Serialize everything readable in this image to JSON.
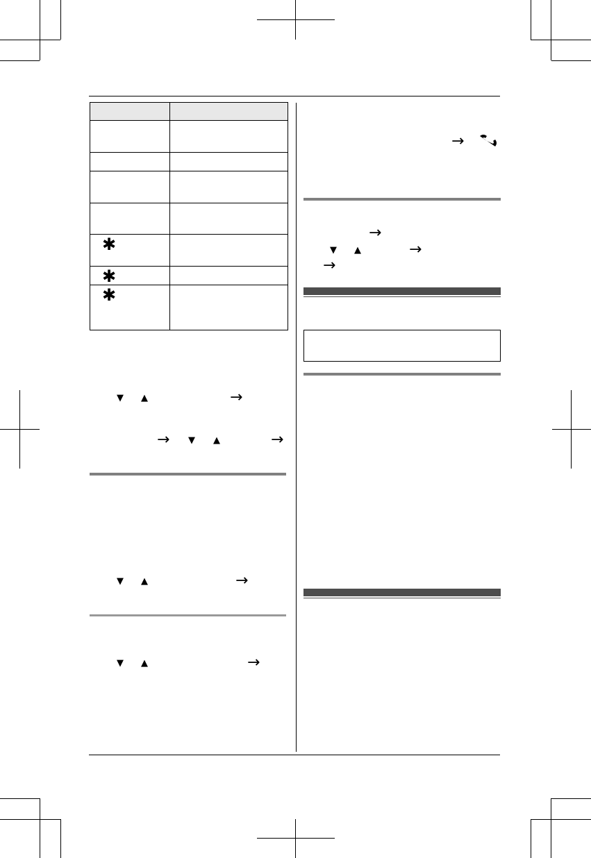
{
  "symbols": {
    "arrow": "→",
    "down": "▼",
    "up": "▲",
    "asterisk": "✱"
  },
  "icons": [
    "arrow-right-icon",
    "down-triangle-icon",
    "up-triangle-icon",
    "asterisk-icon",
    "phone-off-icon"
  ],
  "colors": {
    "table_header": "#e8e8e8",
    "section_bar_light": "#808080",
    "section_bar_dark": "#4d4d4d"
  }
}
